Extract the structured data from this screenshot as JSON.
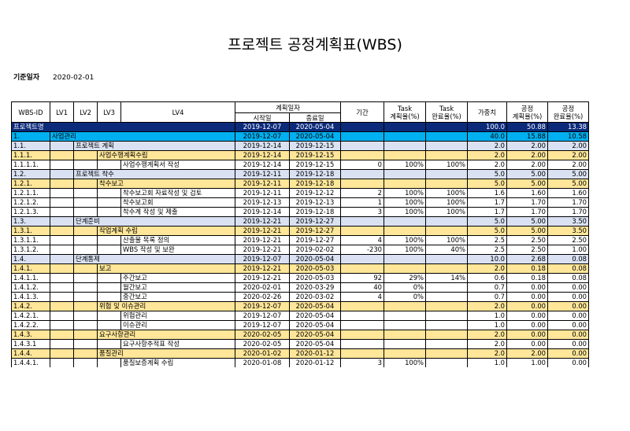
{
  "title": "프로젝트 공정계획표(WBS)",
  "base_date": {
    "label": "기준일자",
    "value": "2020-02-01"
  },
  "headers": {
    "wbs_id": "WBS-ID",
    "lv1": "LV1",
    "lv2": "LV2",
    "lv3": "LV3",
    "lv4": "LV4",
    "plan_date": "계획일자",
    "start": "시작일",
    "end": "종료일",
    "period": "기간",
    "task_plan": [
      "Task",
      "계획율(%)"
    ],
    "task_done": [
      "Task",
      "완료율(%)"
    ],
    "weight": "가중치",
    "proc_plan": [
      "공정",
      "계획율(%)"
    ],
    "proc_done": [
      "공정",
      "완료율(%)"
    ]
  },
  "colors": {
    "project": "#0b2a7a",
    "level1": "#00b0f0",
    "level2": "#d9e1f2",
    "level3": "#ffe699"
  },
  "rows": [
    {
      "kind": "project",
      "level": 0,
      "id": "프로젝트명",
      "name": "",
      "start": "2019-12-07",
      "end": "2020-05-04",
      "period": "",
      "tplan": "",
      "tdone": "",
      "weight": "100.0",
      "pplan": "50.88",
      "pdone": "13.38"
    },
    {
      "kind": "l1",
      "level": 1,
      "id": "1.",
      "name": "사업관리",
      "start": "2019-12-07",
      "end": "2020-05-04",
      "period": "",
      "tplan": "",
      "tdone": "",
      "weight": "40.0",
      "pplan": "15.88",
      "pdone": "10.58"
    },
    {
      "kind": "l2",
      "level": 2,
      "id": "1.1.",
      "name": "프로젝트 계획",
      "start": "2019-12-14",
      "end": "2019-12-15",
      "period": "",
      "tplan": "",
      "tdone": "",
      "weight": "2.0",
      "pplan": "2.00",
      "pdone": "2.00"
    },
    {
      "kind": "l3",
      "level": 3,
      "id": "1.1.1.",
      "name": "사업수행계획수립",
      "start": "2019-12-14",
      "end": "2019-12-15",
      "period": "",
      "tplan": "",
      "tdone": "",
      "weight": "2.0",
      "pplan": "2.00",
      "pdone": "2.00"
    },
    {
      "kind": "l4",
      "level": 4,
      "id": "1.1.1.1.",
      "name": "사업수행계획서 작성",
      "start": "2019-12-14",
      "end": "2019-12-15",
      "period": "0",
      "tplan": "100%",
      "tdone": "100%",
      "weight": "2.0",
      "pplan": "2.00",
      "pdone": "2.00"
    },
    {
      "kind": "l2",
      "level": 2,
      "id": "1.2.",
      "name": "프로젝트 착수",
      "start": "2019-12-11",
      "end": "2019-12-18",
      "period": "",
      "tplan": "",
      "tdone": "",
      "weight": "5.0",
      "pplan": "5.00",
      "pdone": "5.00"
    },
    {
      "kind": "l3",
      "level": 3,
      "id": "1.2.1.",
      "name": "착수보고",
      "start": "2019-12-11",
      "end": "2019-12-18",
      "period": "",
      "tplan": "",
      "tdone": "",
      "weight": "5.0",
      "pplan": "5.00",
      "pdone": "5.00"
    },
    {
      "kind": "l4",
      "level": 4,
      "id": "1.2.1.1.",
      "name": "착수보고회 자료작성 및 검토",
      "start": "2019-12-11",
      "end": "2019-12-12",
      "period": "2",
      "tplan": "100%",
      "tdone": "100%",
      "weight": "1.6",
      "pplan": "1.60",
      "pdone": "1.60"
    },
    {
      "kind": "l4",
      "level": 4,
      "id": "1.2.1.2.",
      "name": "착수보고회",
      "start": "2019-12-13",
      "end": "2019-12-13",
      "period": "1",
      "tplan": "100%",
      "tdone": "100%",
      "weight": "1.7",
      "pplan": "1.70",
      "pdone": "1.70"
    },
    {
      "kind": "l4",
      "level": 4,
      "id": "1.2.1.3.",
      "name": "착수계 작성 및 제출",
      "start": "2019-12-14",
      "end": "2019-12-18",
      "period": "3",
      "tplan": "100%",
      "tdone": "100%",
      "weight": "1.7",
      "pplan": "1.70",
      "pdone": "1.70"
    },
    {
      "kind": "l2",
      "level": 2,
      "id": "1.3.",
      "name": "단계준비",
      "start": "2019-12-21",
      "end": "2019-12-27",
      "period": "",
      "tplan": "",
      "tdone": "",
      "weight": "5.0",
      "pplan": "5.00",
      "pdone": "3.50"
    },
    {
      "kind": "l3",
      "level": 3,
      "id": "1.3.1.",
      "name": "작업계획 수립",
      "start": "2019-12-21",
      "end": "2019-12-27",
      "period": "",
      "tplan": "",
      "tdone": "",
      "weight": "5.0",
      "pplan": "5.00",
      "pdone": "3.50"
    },
    {
      "kind": "l4",
      "level": 4,
      "id": "1.3.1.1.",
      "name": "산출물 목록 정의",
      "start": "2019-12-21",
      "end": "2019-12-27",
      "period": "4",
      "tplan": "100%",
      "tdone": "100%",
      "weight": "2.5",
      "pplan": "2.50",
      "pdone": "2.50"
    },
    {
      "kind": "l4",
      "level": 4,
      "id": "1.3.1.2.",
      "name": "WBS 작성 및 보완",
      "start": "2019-12-21",
      "end": "2019-02-02",
      "period": "-230",
      "tplan": "100%",
      "tdone": "40%",
      "weight": "2.5",
      "pplan": "2.50",
      "pdone": "1.00"
    },
    {
      "kind": "l2",
      "level": 2,
      "id": "1.4.",
      "name": "단계통제",
      "start": "2019-12-07",
      "end": "2020-05-04",
      "period": "",
      "tplan": "",
      "tdone": "",
      "weight": "10.0",
      "pplan": "2.68",
      "pdone": "0.08"
    },
    {
      "kind": "l3",
      "level": 3,
      "id": "1.4.1.",
      "name": "보고",
      "start": "2019-12-21",
      "end": "2020-05-03",
      "period": "",
      "tplan": "",
      "tdone": "",
      "weight": "2.0",
      "pplan": "0.18",
      "pdone": "0.08"
    },
    {
      "kind": "l4",
      "level": 4,
      "id": "1.4.1.1.",
      "name": "주간보고",
      "start": "2019-12-21",
      "end": "2020-05-03",
      "period": "92",
      "tplan": "29%",
      "tdone": "14%",
      "weight": "0.6",
      "pplan": "0.18",
      "pdone": "0.08"
    },
    {
      "kind": "l4",
      "level": 4,
      "id": "1.4.1.2.",
      "name": "월간보고",
      "start": "2020-02-01",
      "end": "2020-03-29",
      "period": "40",
      "tplan": "0%",
      "tdone": "",
      "weight": "0.7",
      "pplan": "0.00",
      "pdone": "0.00"
    },
    {
      "kind": "l4",
      "level": 4,
      "id": "1.4.1.3.",
      "name": "중간보고",
      "start": "2020-02-26",
      "end": "2020-03-02",
      "period": "4",
      "tplan": "0%",
      "tdone": "",
      "weight": "0.7",
      "pplan": "0.00",
      "pdone": "0.00"
    },
    {
      "kind": "l3",
      "level": 3,
      "id": "1.4.2.",
      "name": "위험 및 이슈관리",
      "start": "2019-12-07",
      "end": "2020-05-04",
      "period": "",
      "tplan": "",
      "tdone": "",
      "weight": "2.0",
      "pplan": "0.00",
      "pdone": "0.00"
    },
    {
      "kind": "l4",
      "level": 4,
      "id": "1.4.2.1.",
      "name": "위험관리",
      "start": "2019-12-07",
      "end": "2020-05-04",
      "period": "",
      "tplan": "",
      "tdone": "",
      "weight": "1.0",
      "pplan": "0.00",
      "pdone": "0.00"
    },
    {
      "kind": "l4",
      "level": 4,
      "id": "1.4.2.2.",
      "name": "이슈관리",
      "start": "2019-12-07",
      "end": "2020-05-04",
      "period": "",
      "tplan": "",
      "tdone": "",
      "weight": "1.0",
      "pplan": "0.00",
      "pdone": "0.00"
    },
    {
      "kind": "l3",
      "level": 3,
      "id": "1.4.3.",
      "name": "요구사항관리",
      "start": "2020-02-05",
      "end": "2020-05-04",
      "period": "",
      "tplan": "",
      "tdone": "",
      "weight": "2.0",
      "pplan": "0.00",
      "pdone": "0.00"
    },
    {
      "kind": "l4",
      "level": 4,
      "id": "1.4.3.1",
      "name": "요구사항추적표 작성",
      "start": "2020-02-05",
      "end": "2020-05-04",
      "period": "",
      "tplan": "",
      "tdone": "",
      "weight": "2.0",
      "pplan": "0.00",
      "pdone": "0.00"
    },
    {
      "kind": "l3",
      "level": 3,
      "id": "1.4.4.",
      "name": "품질관리",
      "start": "2020-01-02",
      "end": "2020-01-12",
      "period": "",
      "tplan": "",
      "tdone": "",
      "weight": "2.0",
      "pplan": "2.00",
      "pdone": "0.00"
    },
    {
      "kind": "l4",
      "level": 4,
      "id": "1.4.4.1.",
      "name": "품질보증계획 수립",
      "start": "2020-01-08",
      "end": "2020-01-12",
      "period": "3",
      "tplan": "100%",
      "tdone": "",
      "weight": "1.0",
      "pplan": "1.00",
      "pdone": "0.00"
    }
  ]
}
